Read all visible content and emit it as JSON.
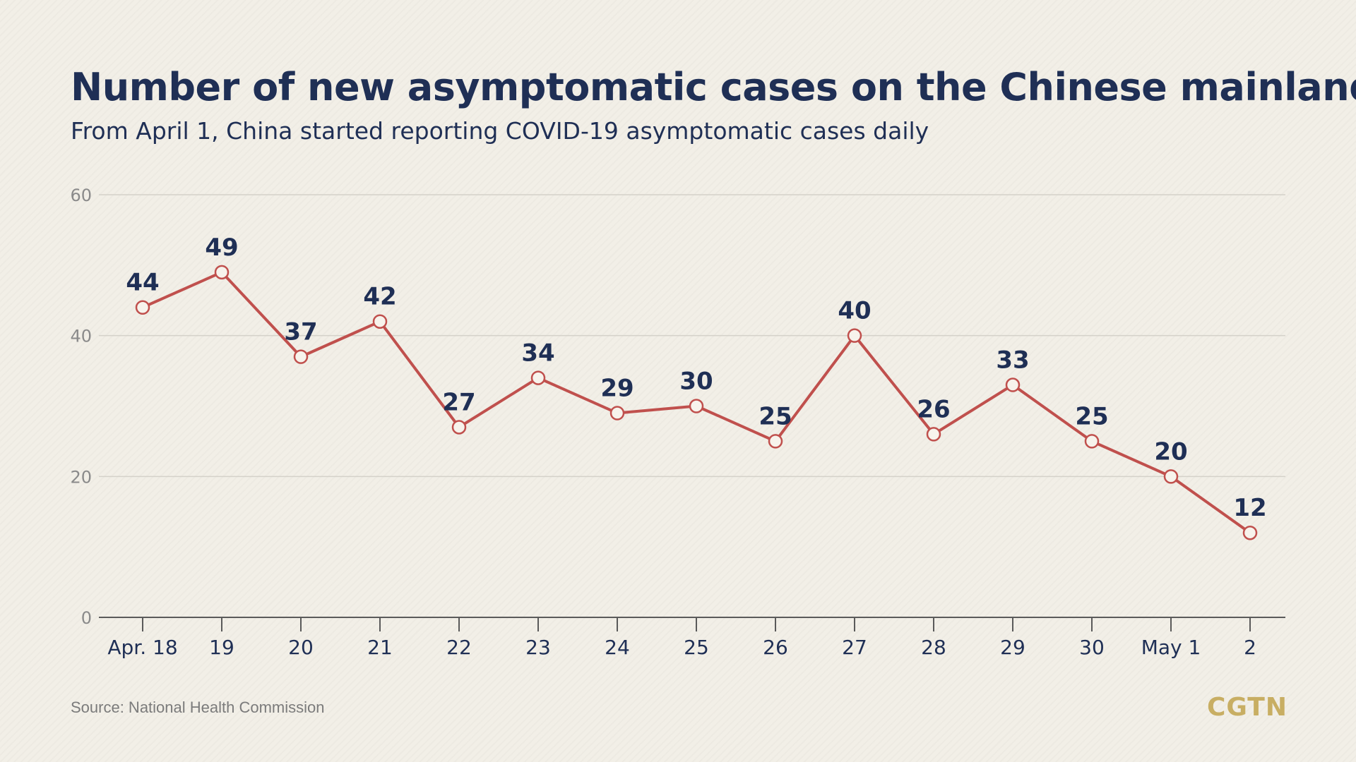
{
  "header": {
    "title": "Number of new asymptomatic cases on the Chinese mainland",
    "subtitle": "From April 1, China started reporting COVID-19 asymptomatic cases daily"
  },
  "footer": {
    "source": "Source: National Health Commission",
    "logo": "CGTN"
  },
  "colors": {
    "line": "#c0504d",
    "marker_fill": "#f7f3ec",
    "text": "#1f2f55",
    "grid": "#d4d1c9",
    "axis": "#5a5a5a",
    "logo": "#c8ae63"
  },
  "chart_data": {
    "type": "line",
    "categories": [
      "Apr. 18",
      "19",
      "20",
      "21",
      "22",
      "23",
      "24",
      "25",
      "26",
      "27",
      "28",
      "29",
      "30",
      "May 1",
      "2"
    ],
    "series": [
      {
        "values": [
          44,
          49,
          37,
          42,
          27,
          34,
          29,
          30,
          25,
          40,
          26,
          33,
          25,
          20,
          12
        ]
      }
    ],
    "yticks": [
      0,
      20,
      40,
      60
    ],
    "ylim": [
      0,
      60
    ],
    "grid": true,
    "legend": "none"
  }
}
